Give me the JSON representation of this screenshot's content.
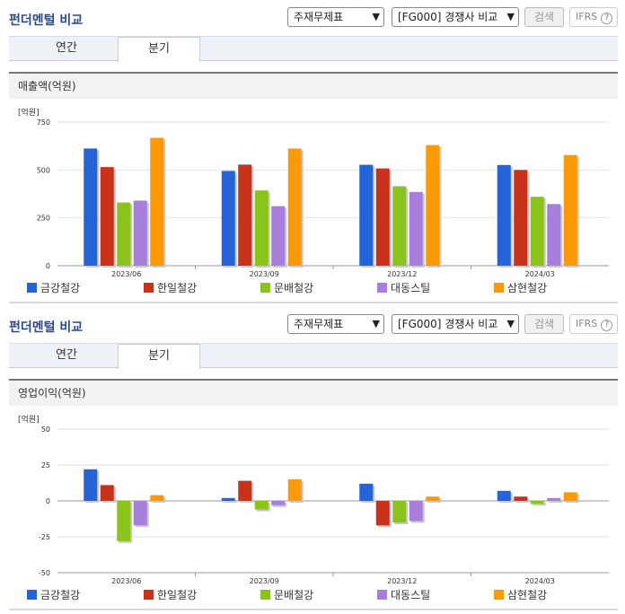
{
  "header": {
    "title": "펀더멘털 비교",
    "select_statement": "주재무제표",
    "select_compare": "[FG000] 경쟁사 비교",
    "search_label": "검색",
    "ifrs_label": "IFRS",
    "help_glyph": "?"
  },
  "tabs": [
    {
      "label": "연간",
      "active": false
    },
    {
      "label": "분기",
      "active": true
    }
  ],
  "colors": {
    "금강철강": "#2563d8",
    "한일철강": "#c8321a",
    "문배철강": "#8bc31d",
    "대동스틸": "#a77fdb",
    "삼현철강": "#fb9a06"
  },
  "chart_data": [
    {
      "type": "bar",
      "title": "매출액(억원)",
      "unit_label": "[억원]",
      "categories": [
        "2023/06",
        "2023/09",
        "2023/12",
        "2024/03"
      ],
      "ylim": [
        0,
        750
      ],
      "yticks": [
        0,
        250,
        500,
        750
      ],
      "series": [
        {
          "name": "금강철강",
          "color": "#2563d8",
          "values": [
            612,
            495,
            527,
            526
          ]
        },
        {
          "name": "한일철강",
          "color": "#c8321a",
          "values": [
            515,
            528,
            508,
            500
          ]
        },
        {
          "name": "문배철강",
          "color": "#8bc31d",
          "values": [
            330,
            393,
            415,
            360
          ]
        },
        {
          "name": "대동스틸",
          "color": "#a77fdb",
          "values": [
            340,
            311,
            385,
            322
          ]
        },
        {
          "name": "삼현철강",
          "color": "#fb9a06",
          "values": [
            668,
            612,
            630,
            578
          ]
        }
      ],
      "legend": "bottom"
    },
    {
      "type": "bar",
      "title": "영업이익(억원)",
      "unit_label": "[억원]",
      "categories": [
        "2023/06",
        "2023/09",
        "2023/12",
        "2024/03"
      ],
      "ylim": [
        -50,
        50
      ],
      "yticks": [
        -50,
        -25,
        0,
        25,
        50
      ],
      "series": [
        {
          "name": "금강철강",
          "color": "#2563d8",
          "values": [
            22,
            2,
            12,
            7
          ]
        },
        {
          "name": "한일철강",
          "color": "#c8321a",
          "values": [
            11,
            14,
            -17,
            3
          ]
        },
        {
          "name": "문배철강",
          "color": "#8bc31d",
          "values": [
            -28,
            -6,
            -15,
            -2
          ]
        },
        {
          "name": "대동스틸",
          "color": "#a77fdb",
          "values": [
            -17,
            -3,
            -14,
            2
          ]
        },
        {
          "name": "삼현철강",
          "color": "#fb9a06",
          "values": [
            4,
            15,
            3,
            6
          ]
        }
      ],
      "legend": "bottom"
    }
  ]
}
